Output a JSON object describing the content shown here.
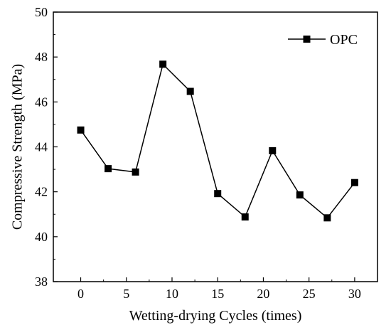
{
  "chart_data": {
    "type": "line",
    "title": "",
    "xlabel": "Wetting-drying Cycles (times)",
    "ylabel": "Compressive Strength (MPa)",
    "xlim": [
      -3,
      32.5
    ],
    "ylim": [
      38,
      50
    ],
    "xticks": [
      0,
      5,
      10,
      15,
      20,
      25,
      30
    ],
    "yticks": [
      38,
      40,
      42,
      44,
      46,
      48,
      50
    ],
    "grid": false,
    "legend_position": "top-right",
    "series": [
      {
        "name": "OPC",
        "color": "#000000",
        "marker": "square",
        "x": [
          0,
          3,
          6,
          9,
          12,
          15,
          18,
          21,
          24,
          27,
          30
        ],
        "y": [
          44.75,
          43.03,
          42.88,
          47.68,
          46.47,
          41.92,
          40.88,
          43.83,
          41.86,
          40.84,
          42.41
        ]
      }
    ]
  }
}
